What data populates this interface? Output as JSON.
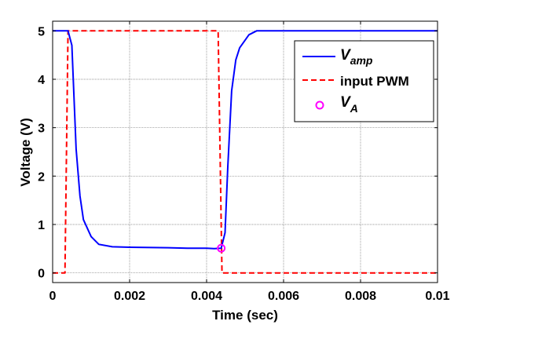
{
  "chart_data": {
    "type": "line",
    "title": "",
    "xlabel": "Time (sec)",
    "ylabel": "Voltage (V)",
    "xlim": [
      0,
      0.01
    ],
    "ylim": [
      -0.2,
      5.2
    ],
    "xticks": [
      0,
      0.002,
      0.004,
      0.006,
      0.008,
      0.01
    ],
    "xtick_labels": [
      "0",
      "0.002",
      "0.004",
      "0.006",
      "0.008",
      "0.01"
    ],
    "yticks": [
      0,
      1,
      2,
      3,
      4,
      5
    ],
    "ytick_labels": [
      "0",
      "1",
      "2",
      "3",
      "4",
      "5"
    ],
    "grid": true,
    "legend_position": "top-right",
    "series": [
      {
        "name": "V_amp",
        "legend_main": "V",
        "legend_sub": "amp",
        "style": "solid",
        "color": "#0000ff",
        "x": [
          0,
          0.0004,
          0.0005,
          0.00061,
          0.00071,
          0.0008,
          0.001,
          0.0012,
          0.00155,
          0.002,
          0.003,
          0.0035,
          0.004,
          0.0042,
          0.00438,
          0.00448,
          0.00455,
          0.00465,
          0.00476,
          0.00486,
          0.0051,
          0.0053,
          0.01
        ],
        "y": [
          5,
          5,
          4.7,
          2.56,
          1.59,
          1.1,
          0.75,
          0.59,
          0.54,
          0.53,
          0.52,
          0.51,
          0.51,
          0.5,
          0.51,
          0.83,
          2.19,
          3.76,
          4.4,
          4.65,
          4.92,
          5.0,
          5.0
        ]
      },
      {
        "name": "input PWM",
        "style": "dashed",
        "color": "#ff0000",
        "x": [
          0,
          0.00032,
          0.0004,
          0.0043,
          0.0044,
          0.01
        ],
        "y": [
          0,
          0,
          5,
          5,
          0,
          0
        ]
      },
      {
        "name": "V_A",
        "legend_main": "V",
        "legend_sub": "A",
        "style": "marker-circle",
        "color": "#ff00ff",
        "x": [
          0.00438
        ],
        "y": [
          0.51
        ]
      }
    ]
  }
}
